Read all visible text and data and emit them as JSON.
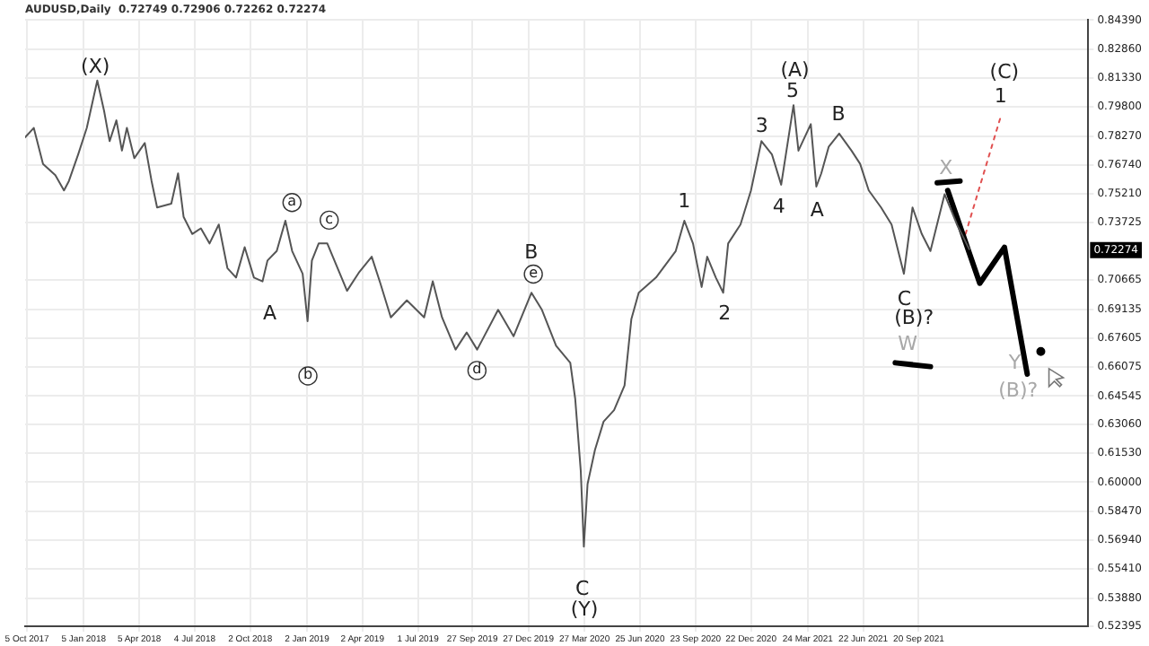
{
  "chart_data": {
    "type": "line",
    "title": "AUDUSD,Daily  0.72749 0.72906 0.72262 0.72274",
    "x": [
      "2017-10-02",
      "2017-10-16",
      "2017-10-31",
      "2017-11-20",
      "2017-12-04",
      "2017-12-12",
      "2017-12-27",
      "2018-01-10",
      "2018-01-27",
      "2018-02-07",
      "2018-02-16",
      "2018-02-27",
      "2018-03-08",
      "2018-03-16",
      "2018-03-28",
      "2018-04-14",
      "2018-04-25",
      "2018-05-04",
      "2018-05-27",
      "2018-06-07",
      "2018-06-16",
      "2018-06-30",
      "2018-07-14",
      "2018-07-28",
      "2018-08-12",
      "2018-08-26",
      "2018-09-09",
      "2018-09-23",
      "2018-10-08",
      "2018-10-22",
      "2018-10-30",
      "2018-11-14",
      "2018-11-28",
      "2018-12-09",
      "2018-12-26",
      "2019-01-03",
      "2019-01-10",
      "2019-01-21",
      "2019-02-04",
      "2019-03-08",
      "2019-03-28",
      "2019-04-17",
      "2019-05-01",
      "2019-05-18",
      "2019-06-13",
      "2019-07-11",
      "2019-07-25",
      "2019-08-09",
      "2019-08-31",
      "2019-09-18",
      "2019-10-05",
      "2019-11-08",
      "2019-12-03",
      "2020-01-01",
      "2020-01-18",
      "2020-02-10",
      "2020-03-04",
      "2020-03-12",
      "2020-03-21",
      "2020-03-26",
      "2020-04-01",
      "2020-04-13",
      "2020-04-27",
      "2020-05-14",
      "2020-05-31",
      "2020-06-11",
      "2020-06-23",
      "2020-07-21",
      "2020-08-22",
      "2020-09-05",
      "2020-09-19",
      "2020-10-03",
      "2020-10-12",
      "2020-10-26",
      "2020-11-07",
      "2020-11-15",
      "2020-12-05",
      "2020-12-22",
      "2021-01-08",
      "2021-01-25",
      "2021-02-09",
      "2021-03-01",
      "2021-03-09",
      "2021-03-29",
      "2021-04-07",
      "2021-04-15",
      "2021-04-27",
      "2021-05-14",
      "2021-06-03",
      "2021-06-17",
      "2021-07-01",
      "2021-07-21",
      "2021-08-07",
      "2021-08-27",
      "2021-09-10",
      "2021-09-25",
      "2021-10-09",
      "2021-11-01",
      "2021-11-21",
      "2021-12-11"
    ],
    "series": [
      {
        "color": "#555555",
        "values": [
          0.782,
          0.787,
          0.768,
          0.762,
          0.754,
          0.759,
          0.773,
          0.787,
          0.812,
          0.796,
          0.78,
          0.791,
          0.775,
          0.787,
          0.771,
          0.779,
          0.759,
          0.745,
          0.747,
          0.763,
          0.74,
          0.731,
          0.734,
          0.726,
          0.736,
          0.713,
          0.708,
          0.724,
          0.708,
          0.706,
          0.717,
          0.722,
          0.738,
          0.722,
          0.71,
          0.685,
          0.717,
          0.726,
          0.726,
          0.701,
          0.711,
          0.719,
          0.705,
          0.687,
          0.696,
          0.687,
          0.706,
          0.687,
          0.67,
          0.679,
          0.67,
          0.691,
          0.677,
          0.7,
          0.691,
          0.672,
          0.663,
          0.644,
          0.606,
          0.566,
          0.599,
          0.617,
          0.632,
          0.638,
          0.651,
          0.686,
          0.7,
          0.708,
          0.722,
          0.738,
          0.726,
          0.703,
          0.719,
          0.708,
          0.7,
          0.726,
          0.736,
          0.754,
          0.78,
          0.773,
          0.757,
          0.799,
          0.775,
          0.789,
          0.756,
          0.763,
          0.777,
          0.784,
          0.775,
          0.768,
          0.754,
          0.745,
          0.736,
          0.71,
          0.745,
          0.731,
          0.722,
          0.752,
          0.736,
          0.723
        ]
      },
      {
        "color": "#000000",
        "x": [
          "2021-11-06",
          "2021-12-28",
          "2022-02-06",
          "2022-03-15"
        ],
        "values": [
          0.754,
          0.705,
          0.724,
          0.657
        ]
      },
      {
        "color": "#000000",
        "x": [
          "2021-10-20",
          "2021-11-26"
        ],
        "values": [
          0.758,
          0.759
        ]
      },
      {
        "color": "#000000",
        "x": [
          "2021-08-13",
          "2021-10-09"
        ],
        "values": [
          0.663,
          0.661
        ]
      },
      {
        "color": "#e05050",
        "line_style": "dotted",
        "x": [
          "2021-12-05",
          "2022-01-31"
        ],
        "values": [
          0.731,
          0.793
        ]
      },
      {
        "type": "scatter",
        "marker": "circle",
        "color": "#000000",
        "x": [
          "2022-04-06"
        ],
        "values": [
          0.669
        ]
      }
    ],
    "xlim": [
      "2017-10-02",
      "2022-06-22"
    ],
    "xticks": [
      {
        "value": "2017-10-05",
        "label": "5 Oct 2017"
      },
      {
        "value": "2018-01-05",
        "label": "5 Jan 2018"
      },
      {
        "value": "2018-04-05",
        "label": "5 Apr 2018"
      },
      {
        "value": "2018-07-04",
        "label": "4 Jul 2018"
      },
      {
        "value": "2018-10-02",
        "label": "2 Oct 2018"
      },
      {
        "value": "2019-01-02",
        "label": "2 Jan 2019"
      },
      {
        "value": "2019-04-02",
        "label": "2 Apr 2019"
      },
      {
        "value": "2019-07-01",
        "label": "1 Jul 2019"
      },
      {
        "value": "2019-09-27",
        "label": "27 Sep 2019"
      },
      {
        "value": "2019-12-27",
        "label": "27 Dec 2019"
      },
      {
        "value": "2020-03-27",
        "label": "27 Mar 2020"
      },
      {
        "value": "2020-06-25",
        "label": "25 Jun 2020"
      },
      {
        "value": "2020-09-23",
        "label": "23 Sep 2020"
      },
      {
        "value": "2020-12-22",
        "label": "22 Dec 2020"
      },
      {
        "value": "2021-03-24",
        "label": "24 Mar 2021"
      },
      {
        "value": "2021-06-22",
        "label": "22 Jun 2021"
      },
      {
        "value": "2021-09-20",
        "label": "20 Sep 2021"
      }
    ],
    "ylim": [
      0.52395,
      0.8439
    ],
    "yticks": [
      {
        "value": 0.8439,
        "label": "0.84390"
      },
      {
        "value": 0.8286,
        "label": "0.82860"
      },
      {
        "value": 0.8133,
        "label": "0.81330"
      },
      {
        "value": 0.798,
        "label": "0.79800"
      },
      {
        "value": 0.7827,
        "label": "0.78270"
      },
      {
        "value": 0.7674,
        "label": "0.76740"
      },
      {
        "value": 0.7521,
        "label": "0.75210"
      },
      {
        "value": 0.73725,
        "label": "0.73725"
      },
      {
        "value": 0.70665,
        "label": "0.70665"
      },
      {
        "value": 0.69135,
        "label": "0.69135"
      },
      {
        "value": 0.67605,
        "label": "0.67605"
      },
      {
        "value": 0.66075,
        "label": "0.66075"
      },
      {
        "value": 0.64545,
        "label": "0.64545"
      },
      {
        "value": 0.6306,
        "label": "0.63060"
      },
      {
        "value": 0.6153,
        "label": "0.61530"
      },
      {
        "value": 0.6,
        "label": "0.60000"
      },
      {
        "value": 0.5847,
        "label": "0.58470"
      },
      {
        "value": 0.5694,
        "label": "0.56940"
      },
      {
        "value": 0.5541,
        "label": "0.55410"
      },
      {
        "value": 0.5388,
        "label": "0.53880"
      },
      {
        "value": 0.52395,
        "label": "0.52395"
      }
    ],
    "grid": true,
    "legend": false,
    "marker": "none",
    "line_style": "solid",
    "annotations": [
      "(X)",
      "A",
      "a",
      "c",
      "b",
      "d",
      "B",
      "e",
      "C",
      "(Y)",
      "1",
      "2",
      "3",
      "4",
      "5",
      "(A)",
      "A",
      "B",
      "C",
      "(B)?",
      "W",
      "X",
      "(C)",
      {
        "text": "1",
        "x": "2022-01-31",
        "y": 0.793
      },
      {
        "text": "Y",
        "x": "2022-03-15",
        "y": 0.657
      },
      "(B)?",
      "0.72274"
    ]
  }
}
